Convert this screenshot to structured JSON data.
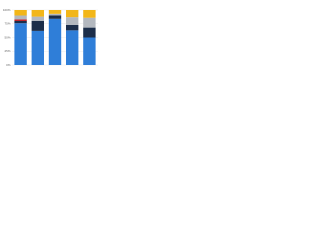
{
  "chart_data": {
    "type": "stacked-bar",
    "categories": [
      null,
      null,
      null,
      null,
      null
    ],
    "series": [
      {
        "color": "#2f7ed8",
        "values": [
          76,
          62,
          84,
          63,
          50
        ]
      },
      {
        "color": "#1c2e4a",
        "values": [
          4,
          18,
          6,
          10,
          18
        ]
      },
      {
        "color": "#c0262d",
        "values": [
          3,
          0,
          0,
          0,
          0
        ]
      },
      {
        "color": "#b3b8bf",
        "values": [
          7,
          8,
          3,
          14,
          18
        ]
      },
      {
        "color": "#f2b619",
        "values": [
          10,
          12,
          7,
          13,
          14
        ]
      }
    ],
    "ylim": [
      0,
      100
    ],
    "yticks": [
      {
        "value": 0,
        "label": "0%"
      },
      {
        "value": 25,
        "label": "25%"
      },
      {
        "value": 50,
        "label": "50%"
      },
      {
        "value": 75,
        "label": "75%"
      },
      {
        "value": 100,
        "label": "100%"
      }
    ],
    "grid": true
  }
}
